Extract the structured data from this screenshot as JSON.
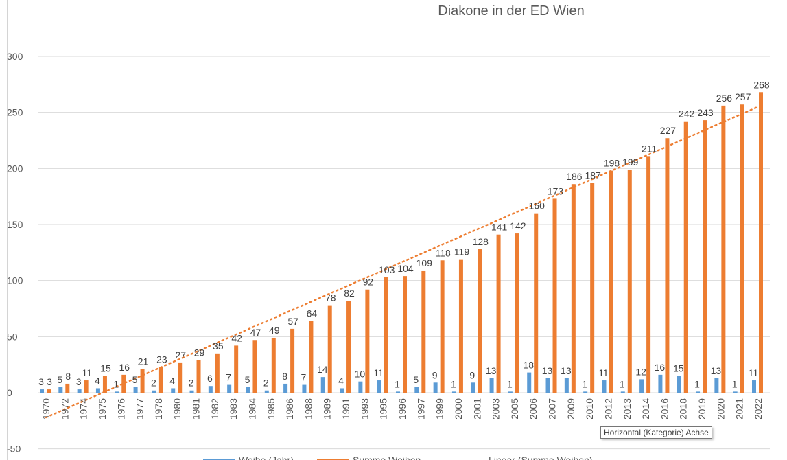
{
  "chart_data": {
    "type": "bar",
    "title": "Diakone in der ED Wien",
    "xlabel": "",
    "ylabel": "",
    "ylim": [
      -50,
      300
    ],
    "yticks": [
      -50,
      0,
      50,
      100,
      150,
      200,
      250,
      300
    ],
    "grid": true,
    "legend_position": "bottom",
    "categories": [
      "1970",
      "1972",
      "1974",
      "1975",
      "1976",
      "1977",
      "1978",
      "1980",
      "1981",
      "1982",
      "1983",
      "1984",
      "1985",
      "1986",
      "1988",
      "1989",
      "1991",
      "1993",
      "1995",
      "1996",
      "1997",
      "1999",
      "2000",
      "2001",
      "2003",
      "2005",
      "2006",
      "2007",
      "2009",
      "2010",
      "2012",
      "2013",
      "2014",
      "2016",
      "2018",
      "2019",
      "2020",
      "2021",
      "2022"
    ],
    "series": [
      {
        "name": "Weihe (Jahr)",
        "color": "#5b9bd5",
        "values": [
          3,
          5,
          3,
          4,
          1,
          5,
          2,
          4,
          2,
          6,
          7,
          5,
          2,
          8,
          7,
          14,
          4,
          10,
          11,
          1,
          5,
          9,
          1,
          9,
          13,
          1,
          18,
          13,
          13,
          1,
          11,
          1,
          12,
          16,
          15,
          1,
          13,
          1,
          11
        ]
      },
      {
        "name": "Summe Weihen",
        "color": "#ed7d31",
        "values": [
          3,
          8,
          11,
          15,
          16,
          21,
          23,
          27,
          29,
          35,
          42,
          47,
          49,
          57,
          64,
          78,
          82,
          92,
          103,
          104,
          109,
          118,
          119,
          128,
          141,
          142,
          160,
          173,
          186,
          187,
          198,
          199,
          211,
          227,
          242,
          243,
          256,
          257,
          268
        ]
      }
    ],
    "trendline": {
      "name": "Linear (Summe Weihen)",
      "color": "#ed7d31",
      "start": -22,
      "end": 255
    }
  },
  "tooltip": "Horizontal (Kategorie) Achse"
}
